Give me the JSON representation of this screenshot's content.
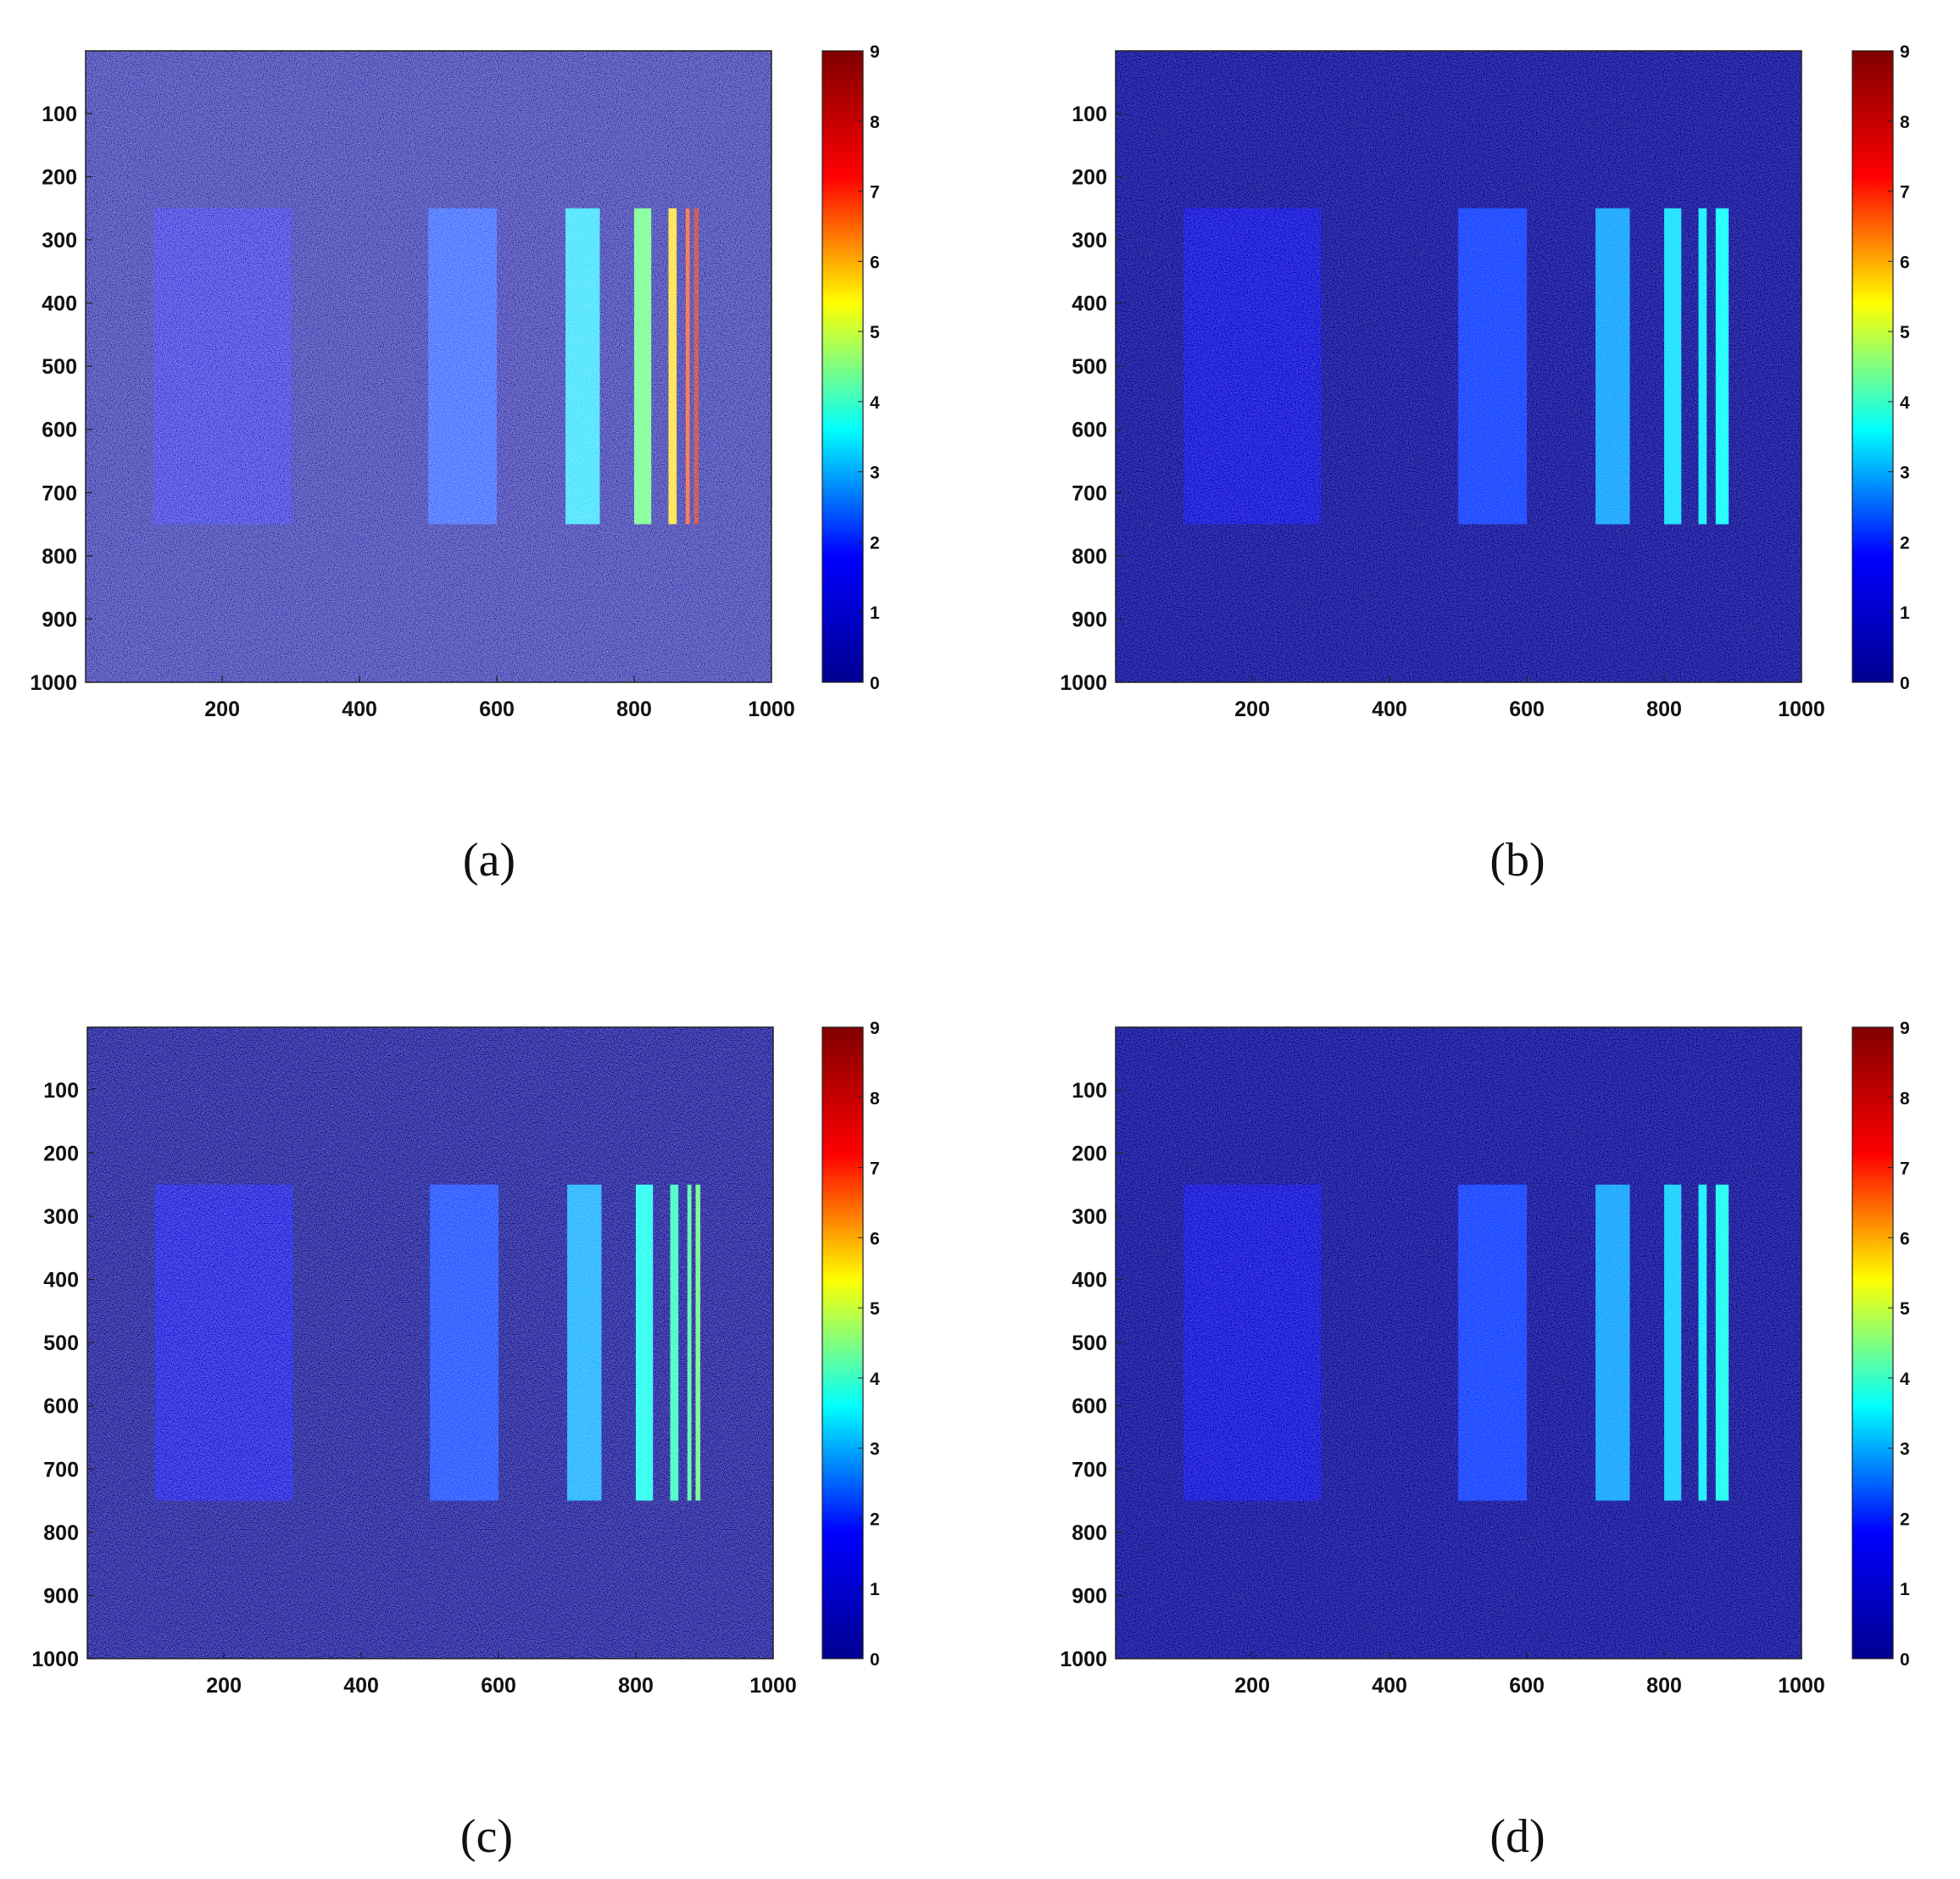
{
  "figure": {
    "panel_labels": [
      "(a)",
      "(b)",
      "(c)",
      "(d)"
    ]
  },
  "colormap": {
    "name": "jet",
    "stops": [
      "#00008f",
      "#0000ff",
      "#00ffff",
      "#ffff00",
      "#ff0000",
      "#800000"
    ]
  },
  "chart_data": [
    {
      "type": "heatmap",
      "panel": "(a)",
      "title": "",
      "xlabel": "",
      "ylabel": "",
      "xlim": [
        1,
        1000
      ],
      "ylim": [
        1,
        1000
      ],
      "y_reversed": true,
      "xticks": [
        200,
        400,
        600,
        800,
        1000
      ],
      "yticks": [
        100,
        200,
        300,
        400,
        500,
        600,
        700,
        800,
        900,
        1000
      ],
      "colorbar": {
        "range": [
          0,
          9
        ],
        "ticks": [
          0,
          1,
          2,
          3,
          4,
          5,
          6,
          7,
          8,
          9
        ]
      },
      "grid": false,
      "background_value": 0.6,
      "noise": "high",
      "regions": [
        {
          "x": [
            100,
            300
          ],
          "y": [
            250,
            750
          ],
          "value": 1.3
        },
        {
          "x": [
            500,
            600
          ],
          "y": [
            250,
            750
          ],
          "value": 2.5
        },
        {
          "x": [
            700,
            750
          ],
          "y": [
            250,
            750
          ],
          "value": 3.4
        },
        {
          "x": [
            800,
            825
          ],
          "y": [
            250,
            750
          ],
          "value": 4.4
        },
        {
          "x": [
            850,
            862
          ],
          "y": [
            250,
            750
          ],
          "value": 5.6
        },
        {
          "x": [
            875,
            881
          ],
          "y": [
            250,
            750
          ],
          "value": 6.6
        },
        {
          "x": [
            887,
            894
          ],
          "y": [
            250,
            750
          ],
          "value": 8.0
        }
      ]
    },
    {
      "type": "heatmap",
      "panel": "(b)",
      "title": "",
      "xlabel": "",
      "ylabel": "",
      "xlim": [
        1,
        1000
      ],
      "ylim": [
        1,
        1000
      ],
      "y_reversed": true,
      "xticks": [
        200,
        400,
        600,
        800,
        1000
      ],
      "yticks": [
        100,
        200,
        300,
        400,
        500,
        600,
        700,
        800,
        900,
        1000
      ],
      "colorbar": {
        "range": [
          0,
          9
        ],
        "ticks": [
          0,
          1,
          2,
          3,
          4,
          5,
          6,
          7,
          8,
          9
        ]
      },
      "grid": false,
      "background_value": 0.3,
      "noise": "low",
      "regions": [
        {
          "x": [
            100,
            300
          ],
          "y": [
            250,
            750
          ],
          "value": 1.2
        },
        {
          "x": [
            500,
            600
          ],
          "y": [
            250,
            750
          ],
          "value": 2.3
        },
        {
          "x": [
            700,
            750
          ],
          "y": [
            250,
            750
          ],
          "value": 3.0
        },
        {
          "x": [
            800,
            825
          ],
          "y": [
            250,
            750
          ],
          "value": 3.4
        },
        {
          "x": [
            850,
            862
          ],
          "y": [
            250,
            750
          ],
          "value": 3.5
        },
        {
          "x": [
            875,
            894
          ],
          "y": [
            250,
            750
          ],
          "value": 3.6
        }
      ]
    },
    {
      "type": "heatmap",
      "panel": "(c)",
      "title": "",
      "xlabel": "",
      "ylabel": "",
      "xlim": [
        1,
        1000
      ],
      "ylim": [
        1,
        1000
      ],
      "y_reversed": true,
      "xticks": [
        200,
        400,
        600,
        800,
        1000
      ],
      "yticks": [
        100,
        200,
        300,
        400,
        500,
        600,
        700,
        800,
        900,
        1000
      ],
      "colorbar": {
        "range": [
          0,
          9
        ],
        "ticks": [
          0,
          1,
          2,
          3,
          4,
          5,
          6,
          7,
          8,
          9
        ]
      },
      "grid": false,
      "background_value": 0.3,
      "noise": "medium",
      "regions": [
        {
          "x": [
            100,
            300
          ],
          "y": [
            250,
            750
          ],
          "value": 1.3
        },
        {
          "x": [
            500,
            600
          ],
          "y": [
            250,
            750
          ],
          "value": 2.4
        },
        {
          "x": [
            700,
            750
          ],
          "y": [
            250,
            750
          ],
          "value": 3.1
        },
        {
          "x": [
            800,
            825
          ],
          "y": [
            250,
            750
          ],
          "value": 3.7
        },
        {
          "x": [
            850,
            862
          ],
          "y": [
            250,
            750
          ],
          "value": 4.0
        },
        {
          "x": [
            875,
            881
          ],
          "y": [
            250,
            750
          ],
          "value": 4.2
        },
        {
          "x": [
            887,
            894
          ],
          "y": [
            250,
            750
          ],
          "value": 4.4
        }
      ]
    },
    {
      "type": "heatmap",
      "panel": "(d)",
      "title": "",
      "xlabel": "",
      "ylabel": "",
      "xlim": [
        1,
        1000
      ],
      "ylim": [
        1,
        1000
      ],
      "y_reversed": true,
      "xticks": [
        200,
        400,
        600,
        800,
        1000
      ],
      "yticks": [
        100,
        200,
        300,
        400,
        500,
        600,
        700,
        800,
        900,
        1000
      ],
      "colorbar": {
        "range": [
          0,
          9
        ],
        "ticks": [
          0,
          1,
          2,
          3,
          4,
          5,
          6,
          7,
          8,
          9
        ]
      },
      "grid": false,
      "background_value": 0.3,
      "noise": "low",
      "regions": [
        {
          "x": [
            100,
            300
          ],
          "y": [
            250,
            750
          ],
          "value": 1.2
        },
        {
          "x": [
            500,
            600
          ],
          "y": [
            250,
            750
          ],
          "value": 2.3
        },
        {
          "x": [
            700,
            750
          ],
          "y": [
            250,
            750
          ],
          "value": 3.0
        },
        {
          "x": [
            800,
            825
          ],
          "y": [
            250,
            750
          ],
          "value": 3.3
        },
        {
          "x": [
            850,
            862
          ],
          "y": [
            250,
            750
          ],
          "value": 3.5
        },
        {
          "x": [
            875,
            894
          ],
          "y": [
            250,
            750
          ],
          "value": 3.7
        }
      ]
    }
  ]
}
